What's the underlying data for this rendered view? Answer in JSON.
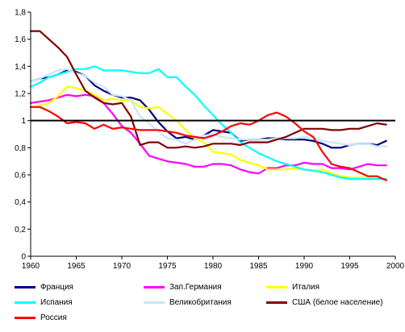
{
  "chart_data": {
    "type": "line",
    "title": "",
    "xlabel": "",
    "ylabel": "",
    "xlim": [
      1960,
      2000
    ],
    "ylim": [
      0,
      1.8
    ],
    "x_ticks": [
      "1960",
      "1965",
      "1970",
      "1975",
      "1980",
      "1985",
      "1990",
      "1995",
      "2000"
    ],
    "y_ticks": [
      "0",
      "0,2",
      "0,4",
      "0,6",
      "0,8",
      "1",
      "1,2",
      "1,4",
      "1,6",
      "1,8"
    ],
    "reference_line": 1,
    "grid": false,
    "legend_position": "bottom",
    "series": [
      {
        "name": "Франция",
        "color": "#000080",
        "points": [
          [
            1960,
            1.29
          ],
          [
            1961,
            1.31
          ],
          [
            1962,
            1.32
          ],
          [
            1963,
            1.34
          ],
          [
            1964,
            1.37
          ],
          [
            1965,
            1.36
          ],
          [
            1966,
            1.33
          ],
          [
            1967,
            1.26
          ],
          [
            1968,
            1.22
          ],
          [
            1969,
            1.19
          ],
          [
            1970,
            1.17
          ],
          [
            1971,
            1.17
          ],
          [
            1972,
            1.15
          ],
          [
            1973,
            1.08
          ],
          [
            1974,
            0.99
          ],
          [
            1975,
            0.92
          ],
          [
            1976,
            0.87
          ],
          [
            1977,
            0.88
          ],
          [
            1978,
            0.86
          ],
          [
            1979,
            0.89
          ],
          [
            1980,
            0.93
          ],
          [
            1981,
            0.92
          ],
          [
            1982,
            0.91
          ],
          [
            1983,
            0.85
          ],
          [
            1984,
            0.86
          ],
          [
            1985,
            0.86
          ],
          [
            1986,
            0.87
          ],
          [
            1987,
            0.87
          ],
          [
            1988,
            0.86
          ],
          [
            1989,
            0.86
          ],
          [
            1990,
            0.86
          ],
          [
            1991,
            0.85
          ],
          [
            1992,
            0.83
          ],
          [
            1993,
            0.8
          ],
          [
            1994,
            0.8
          ],
          [
            1995,
            0.82
          ],
          [
            1996,
            0.83
          ],
          [
            1997,
            0.83
          ],
          [
            1998,
            0.82
          ],
          [
            1999,
            0.85
          ]
        ]
      },
      {
        "name": "Зап.Германия",
        "color": "#ff00ff",
        "points": [
          [
            1960,
            1.13
          ],
          [
            1961,
            1.14
          ],
          [
            1962,
            1.15
          ],
          [
            1963,
            1.17
          ],
          [
            1964,
            1.19
          ],
          [
            1965,
            1.18
          ],
          [
            1966,
            1.19
          ],
          [
            1967,
            1.18
          ],
          [
            1968,
            1.13
          ],
          [
            1969,
            1.05
          ],
          [
            1970,
            0.96
          ],
          [
            1971,
            0.91
          ],
          [
            1972,
            0.83
          ],
          [
            1973,
            0.74
          ],
          [
            1974,
            0.72
          ],
          [
            1975,
            0.7
          ],
          [
            1976,
            0.69
          ],
          [
            1977,
            0.68
          ],
          [
            1978,
            0.66
          ],
          [
            1979,
            0.66
          ],
          [
            1980,
            0.68
          ],
          [
            1981,
            0.68
          ],
          [
            1982,
            0.67
          ],
          [
            1983,
            0.64
          ],
          [
            1984,
            0.62
          ],
          [
            1985,
            0.61
          ],
          [
            1986,
            0.65
          ],
          [
            1987,
            0.65
          ],
          [
            1988,
            0.67
          ],
          [
            1989,
            0.67
          ],
          [
            1990,
            0.69
          ],
          [
            1991,
            0.68
          ],
          [
            1992,
            0.68
          ],
          [
            1993,
            0.65
          ],
          [
            1994,
            0.65
          ],
          [
            1995,
            0.64
          ],
          [
            1996,
            0.66
          ],
          [
            1997,
            0.68
          ],
          [
            1998,
            0.67
          ],
          [
            1999,
            0.67
          ]
        ]
      },
      {
        "name": "Италия",
        "color": "#ffff00",
        "points": [
          [
            1960,
            1.1
          ],
          [
            1961,
            1.11
          ],
          [
            1962,
            1.13
          ],
          [
            1963,
            1.18
          ],
          [
            1964,
            1.25
          ],
          [
            1965,
            1.24
          ],
          [
            1966,
            1.22
          ],
          [
            1967,
            1.19
          ],
          [
            1968,
            1.15
          ],
          [
            1969,
            1.16
          ],
          [
            1970,
            1.15
          ],
          [
            1971,
            1.15
          ],
          [
            1972,
            1.1
          ],
          [
            1973,
            1.09
          ],
          [
            1974,
            1.1
          ],
          [
            1975,
            1.05
          ],
          [
            1976,
            1.0
          ],
          [
            1977,
            0.93
          ],
          [
            1978,
            0.87
          ],
          [
            1979,
            0.84
          ],
          [
            1980,
            0.77
          ],
          [
            1981,
            0.76
          ],
          [
            1982,
            0.75
          ],
          [
            1983,
            0.71
          ],
          [
            1984,
            0.69
          ],
          [
            1985,
            0.67
          ],
          [
            1986,
            0.64
          ],
          [
            1987,
            0.64
          ],
          [
            1988,
            0.64
          ],
          [
            1989,
            0.65
          ],
          [
            1990,
            0.64
          ],
          [
            1991,
            0.63
          ],
          [
            1992,
            0.64
          ],
          [
            1993,
            0.61
          ],
          [
            1994,
            0.59
          ],
          [
            1995,
            0.58
          ],
          [
            1996,
            0.58
          ],
          [
            1997,
            0.58
          ],
          [
            1998,
            0.58
          ],
          [
            1999,
            0.57
          ]
        ]
      },
      {
        "name": "Испания",
        "color": "#00ffff",
        "points": [
          [
            1960,
            1.25
          ],
          [
            1961,
            1.28
          ],
          [
            1962,
            1.32
          ],
          [
            1963,
            1.34
          ],
          [
            1964,
            1.36
          ],
          [
            1965,
            1.38
          ],
          [
            1966,
            1.38
          ],
          [
            1967,
            1.4
          ],
          [
            1968,
            1.37
          ],
          [
            1969,
            1.37
          ],
          [
            1970,
            1.37
          ],
          [
            1971,
            1.36
          ],
          [
            1972,
            1.35
          ],
          [
            1973,
            1.35
          ],
          [
            1974,
            1.38
          ],
          [
            1975,
            1.32
          ],
          [
            1976,
            1.32
          ],
          [
            1977,
            1.25
          ],
          [
            1978,
            1.19
          ],
          [
            1979,
            1.11
          ],
          [
            1980,
            1.04
          ],
          [
            1981,
            0.97
          ],
          [
            1982,
            0.91
          ],
          [
            1983,
            0.84
          ],
          [
            1984,
            0.8
          ],
          [
            1985,
            0.76
          ],
          [
            1986,
            0.73
          ],
          [
            1987,
            0.7
          ],
          [
            1988,
            0.68
          ],
          [
            1989,
            0.66
          ],
          [
            1990,
            0.64
          ],
          [
            1991,
            0.63
          ],
          [
            1992,
            0.62
          ],
          [
            1993,
            0.6
          ],
          [
            1994,
            0.58
          ],
          [
            1995,
            0.57
          ],
          [
            1996,
            0.57
          ],
          [
            1997,
            0.57
          ],
          [
            1998,
            0.57
          ],
          [
            1999,
            0.57
          ]
        ]
      },
      {
        "name": "Великобритания",
        "color": "#c8e6f5",
        "points": [
          [
            1960,
            1.29
          ],
          [
            1961,
            1.31
          ],
          [
            1962,
            1.34
          ],
          [
            1963,
            1.37
          ],
          [
            1964,
            1.38
          ],
          [
            1965,
            1.35
          ],
          [
            1966,
            1.33
          ],
          [
            1967,
            1.28
          ],
          [
            1968,
            1.25
          ],
          [
            1969,
            1.19
          ],
          [
            1970,
            1.18
          ],
          [
            1971,
            1.15
          ],
          [
            1972,
            1.03
          ],
          [
            1973,
            0.98
          ],
          [
            1974,
            0.92
          ],
          [
            1975,
            0.87
          ],
          [
            1976,
            0.86
          ],
          [
            1977,
            0.83
          ],
          [
            1978,
            0.86
          ],
          [
            1979,
            0.89
          ],
          [
            1980,
            0.9
          ],
          [
            1981,
            0.88
          ],
          [
            1982,
            0.87
          ],
          [
            1983,
            0.86
          ],
          [
            1984,
            0.86
          ],
          [
            1985,
            0.86
          ],
          [
            1986,
            0.86
          ],
          [
            1987,
            0.87
          ],
          [
            1988,
            0.87
          ],
          [
            1989,
            0.87
          ],
          [
            1990,
            0.88
          ],
          [
            1991,
            0.87
          ],
          [
            1992,
            0.85
          ],
          [
            1993,
            0.84
          ],
          [
            1994,
            0.83
          ],
          [
            1995,
            0.82
          ],
          [
            1996,
            0.83
          ],
          [
            1997,
            0.83
          ],
          [
            1998,
            0.81
          ],
          [
            1999,
            0.81
          ]
        ]
      },
      {
        "name": "США (белое население)",
        "color": "#800000",
        "points": [
          [
            1960,
            1.66
          ],
          [
            1961,
            1.66
          ],
          [
            1962,
            1.6
          ],
          [
            1963,
            1.54
          ],
          [
            1964,
            1.47
          ],
          [
            1965,
            1.34
          ],
          [
            1966,
            1.22
          ],
          [
            1967,
            1.17
          ],
          [
            1968,
            1.13
          ],
          [
            1969,
            1.12
          ],
          [
            1970,
            1.13
          ],
          [
            1971,
            1.03
          ],
          [
            1972,
            0.82
          ],
          [
            1973,
            0.84
          ],
          [
            1974,
            0.84
          ],
          [
            1975,
            0.8
          ],
          [
            1976,
            0.8
          ],
          [
            1977,
            0.81
          ],
          [
            1978,
            0.8
          ],
          [
            1979,
            0.81
          ],
          [
            1980,
            0.83
          ],
          [
            1981,
            0.83
          ],
          [
            1982,
            0.83
          ],
          [
            1983,
            0.82
          ],
          [
            1984,
            0.84
          ],
          [
            1985,
            0.84
          ],
          [
            1986,
            0.84
          ],
          [
            1987,
            0.86
          ],
          [
            1988,
            0.88
          ],
          [
            1989,
            0.91
          ],
          [
            1990,
            0.94
          ],
          [
            1991,
            0.94
          ],
          [
            1992,
            0.94
          ],
          [
            1993,
            0.93
          ],
          [
            1994,
            0.93
          ],
          [
            1995,
            0.94
          ],
          [
            1996,
            0.94
          ],
          [
            1997,
            0.96
          ],
          [
            1998,
            0.98
          ],
          [
            1999,
            0.97
          ]
        ]
      },
      {
        "name": "Россия",
        "color": "#ff0000",
        "points": [
          [
            1960,
            1.1
          ],
          [
            1961,
            1.1
          ],
          [
            1962,
            1.07
          ],
          [
            1963,
            1.03
          ],
          [
            1964,
            0.98
          ],
          [
            1965,
            0.99
          ],
          [
            1966,
            0.98
          ],
          [
            1967,
            0.94
          ],
          [
            1968,
            0.97
          ],
          [
            1969,
            0.94
          ],
          [
            1970,
            0.95
          ],
          [
            1971,
            0.94
          ],
          [
            1972,
            0.93
          ],
          [
            1973,
            0.93
          ],
          [
            1974,
            0.93
          ],
          [
            1975,
            0.92
          ],
          [
            1976,
            0.91
          ],
          [
            1977,
            0.89
          ],
          [
            1978,
            0.88
          ],
          [
            1979,
            0.87
          ],
          [
            1980,
            0.89
          ],
          [
            1981,
            0.92
          ],
          [
            1982,
            0.96
          ],
          [
            1983,
            0.98
          ],
          [
            1984,
            0.97
          ],
          [
            1985,
            1.0
          ],
          [
            1986,
            1.04
          ],
          [
            1987,
            1.06
          ],
          [
            1988,
            1.03
          ],
          [
            1989,
            0.98
          ],
          [
            1990,
            0.92
          ],
          [
            1991,
            0.88
          ],
          [
            1992,
            0.77
          ],
          [
            1993,
            0.68
          ],
          [
            1994,
            0.66
          ],
          [
            1995,
            0.65
          ],
          [
            1996,
            0.62
          ],
          [
            1997,
            0.59
          ],
          [
            1998,
            0.59
          ],
          [
            1999,
            0.56
          ]
        ]
      }
    ]
  }
}
